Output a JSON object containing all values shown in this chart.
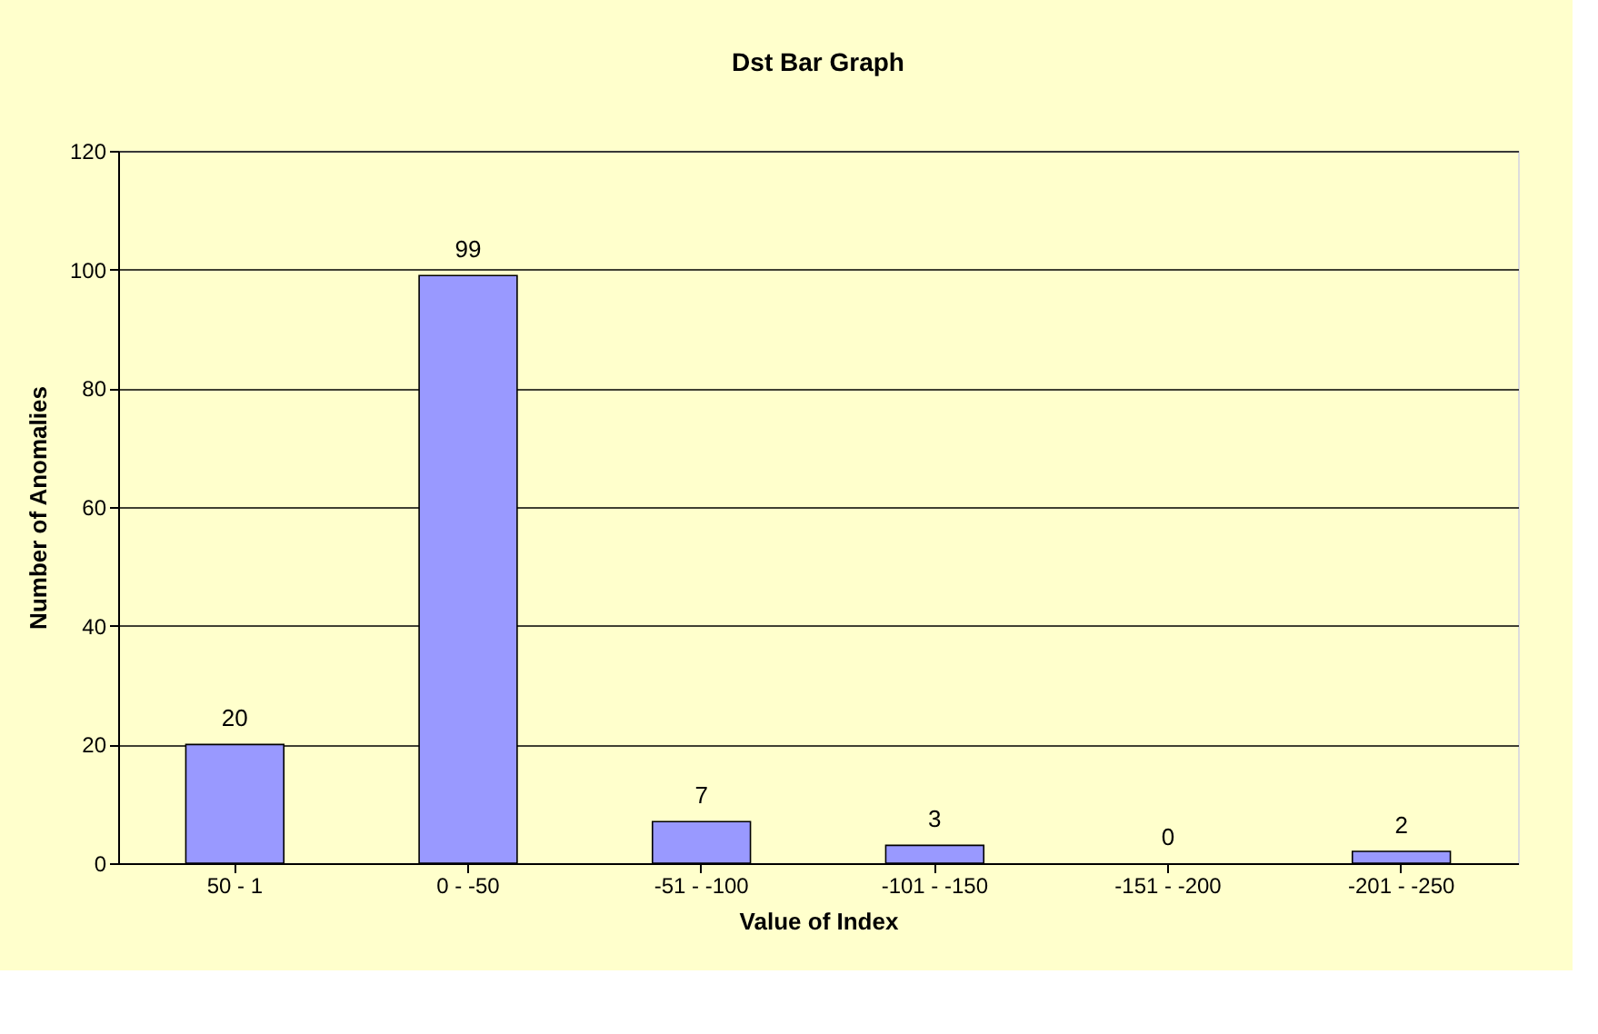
{
  "chart_data": {
    "type": "bar",
    "title": "Dst Bar Graph",
    "xlabel": "Value of Index",
    "ylabel": "Number of Anomalies",
    "categories": [
      "50 - 1",
      "0 - -50",
      "-51 - -100",
      "-101 - -150",
      "-151 - -200",
      "-201 - -250"
    ],
    "values": [
      20,
      99,
      7,
      3,
      0,
      2
    ],
    "color": "#9999ff",
    "ylim": [
      0,
      120
    ],
    "yticks": [
      0,
      20,
      40,
      60,
      80,
      100,
      120
    ],
    "grid": "y",
    "data_labels": true
  }
}
